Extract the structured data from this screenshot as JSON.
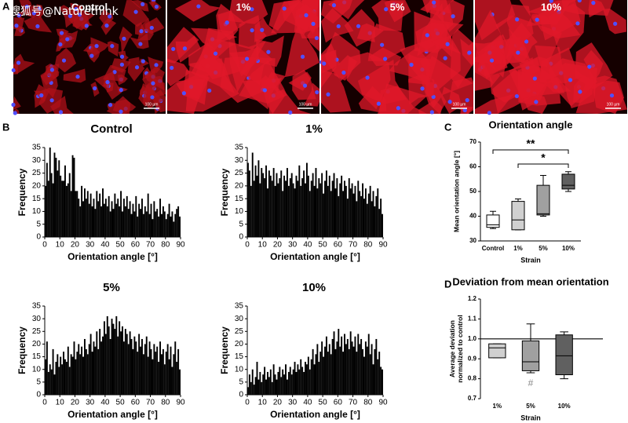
{
  "watermark": "搜狐号@Naturethink",
  "panel_labels": [
    "A",
    "B",
    "C",
    "D"
  ],
  "micrographs": {
    "titles": [
      "Control",
      "1%",
      "5%",
      "10%"
    ],
    "scale_bar": "100 µm"
  },
  "chart_data": [
    {
      "type": "histogram",
      "title": "Control",
      "x_label": "Orientation angle [°]",
      "y_label": "Frequency",
      "color": "#000000",
      "bins": [
        0,
        1,
        2,
        3,
        4,
        5,
        6,
        7,
        8,
        9,
        10,
        11,
        12,
        13,
        14,
        15,
        16,
        17,
        18,
        19,
        20,
        21,
        22,
        23,
        24,
        25,
        26,
        27,
        28,
        29,
        30,
        31,
        32,
        33,
        34,
        35,
        36,
        37,
        38,
        39,
        40,
        41,
        42,
        43,
        44,
        45,
        46,
        47,
        48,
        49,
        50,
        51,
        52,
        53,
        54,
        55,
        56,
        57,
        58,
        59,
        60,
        61,
        62,
        63,
        64,
        65,
        66,
        67,
        68,
        69,
        70,
        71,
        72,
        73,
        74,
        75,
        76,
        77,
        78,
        79,
        80,
        81,
        82,
        83,
        84,
        85,
        86,
        87,
        88,
        89,
        90
      ],
      "values": [
        20,
        29,
        22,
        35,
        25,
        21,
        33,
        31,
        26,
        30,
        24,
        22,
        22,
        28,
        20,
        21,
        25,
        18,
        32,
        31,
        18,
        18,
        15,
        12,
        20,
        14,
        19,
        15,
        18,
        13,
        17,
        12,
        15,
        11,
        18,
        14,
        17,
        12,
        19,
        13,
        15,
        12,
        16,
        10,
        14,
        11,
        17,
        13,
        15,
        12,
        18,
        10,
        15,
        12,
        16,
        11,
        14,
        9,
        13,
        10,
        16,
        8,
        13,
        11,
        15,
        9,
        12,
        10,
        17,
        9,
        13,
        7,
        14,
        10,
        11,
        8,
        15,
        9,
        12,
        10,
        7,
        9,
        13,
        8,
        10,
        6,
        9,
        11,
        12,
        8
      ],
      "xlim": [
        0,
        90
      ],
      "xticks": [
        0,
        10,
        20,
        30,
        40,
        50,
        60,
        70,
        80,
        90
      ],
      "ylim": [
        0,
        35
      ],
      "yticks": [
        0,
        5,
        10,
        15,
        20,
        25,
        30,
        35
      ]
    },
    {
      "type": "histogram",
      "title": "1%",
      "x_label": "Orientation angle [°]",
      "y_label": "Frequency",
      "color": "#000000",
      "bins": [
        0,
        1,
        2,
        3,
        4,
        5,
        6,
        7,
        8,
        9,
        10,
        11,
        12,
        13,
        14,
        15,
        16,
        17,
        18,
        19,
        20,
        21,
        22,
        23,
        24,
        25,
        26,
        27,
        28,
        29,
        30,
        31,
        32,
        33,
        34,
        35,
        36,
        37,
        38,
        39,
        40,
        41,
        42,
        43,
        44,
        45,
        46,
        47,
        48,
        49,
        50,
        51,
        52,
        53,
        54,
        55,
        56,
        57,
        58,
        59,
        60,
        61,
        62,
        63,
        64,
        65,
        66,
        67,
        68,
        69,
        70,
        71,
        72,
        73,
        74,
        75,
        76,
        77,
        78,
        79,
        80,
        81,
        82,
        83,
        84,
        85,
        86,
        87,
        88,
        89,
        90
      ],
      "values": [
        29,
        26,
        20,
        33,
        22,
        28,
        24,
        30,
        21,
        27,
        25,
        23,
        28,
        19,
        26,
        24,
        22,
        27,
        20,
        25,
        21,
        23,
        26,
        18,
        24,
        22,
        27,
        20,
        23,
        25,
        21,
        19,
        24,
        22,
        28,
        20,
        23,
        26,
        21,
        29,
        24,
        18,
        22,
        25,
        20,
        27,
        19,
        23,
        21,
        25,
        17,
        22,
        26,
        20,
        24,
        18,
        22,
        25,
        19,
        23,
        16,
        21,
        24,
        18,
        22,
        20,
        15,
        23,
        19,
        21,
        17,
        20,
        14,
        22,
        18,
        16,
        21,
        15,
        19,
        13,
        17,
        20,
        14,
        18,
        12,
        16,
        19,
        11,
        15,
        9
      ],
      "xlim": [
        0,
        90
      ],
      "xticks": [
        0,
        10,
        20,
        30,
        40,
        50,
        60,
        70,
        80,
        90
      ],
      "ylim": [
        0,
        35
      ],
      "yticks": [
        0,
        5,
        10,
        15,
        20,
        25,
        30,
        35
      ]
    },
    {
      "type": "histogram",
      "title": "5%",
      "x_label": "Orientation angle [°]",
      "y_label": "Frequency",
      "color": "#000000",
      "bins": [
        0,
        1,
        2,
        3,
        4,
        5,
        6,
        7,
        8,
        9,
        10,
        11,
        12,
        13,
        14,
        15,
        16,
        17,
        18,
        19,
        20,
        21,
        22,
        23,
        24,
        25,
        26,
        27,
        28,
        29,
        30,
        31,
        32,
        33,
        34,
        35,
        36,
        37,
        38,
        39,
        40,
        41,
        42,
        43,
        44,
        45,
        46,
        47,
        48,
        49,
        50,
        51,
        52,
        53,
        54,
        55,
        56,
        57,
        58,
        59,
        60,
        61,
        62,
        63,
        64,
        65,
        66,
        67,
        68,
        69,
        70,
        71,
        72,
        73,
        74,
        75,
        76,
        77,
        78,
        79,
        80,
        81,
        82,
        83,
        84,
        85,
        86,
        87,
        88,
        89,
        90
      ],
      "values": [
        14,
        21,
        9,
        12,
        10,
        18,
        8,
        13,
        16,
        11,
        15,
        12,
        17,
        14,
        13,
        19,
        11,
        16,
        15,
        21,
        14,
        17,
        20,
        16,
        19,
        15,
        22,
        18,
        16,
        20,
        24,
        17,
        21,
        19,
        25,
        18,
        26,
        21,
        23,
        29,
        24,
        31,
        27,
        22,
        30,
        28,
        26,
        31,
        23,
        29,
        25,
        27,
        21,
        26,
        24,
        20,
        25,
        22,
        18,
        23,
        21,
        17,
        24,
        19,
        22,
        16,
        20,
        23,
        15,
        21,
        18,
        14,
        20,
        17,
        19,
        13,
        21,
        16,
        18,
        12,
        17,
        20,
        14,
        19,
        11,
        16,
        21,
        13,
        18,
        10
      ],
      "xlim": [
        0,
        90
      ],
      "xticks": [
        0,
        10,
        20,
        30,
        40,
        50,
        60,
        70,
        80,
        90
      ],
      "ylim": [
        0,
        35
      ],
      "yticks": [
        0,
        5,
        10,
        15,
        20,
        25,
        30,
        35
      ]
    },
    {
      "type": "histogram",
      "title": "10%",
      "x_label": "Orientation angle [°]",
      "y_label": "Frequency",
      "color": "#000000",
      "bins": [
        0,
        1,
        2,
        3,
        4,
        5,
        6,
        7,
        8,
        9,
        10,
        11,
        12,
        13,
        14,
        15,
        16,
        17,
        18,
        19,
        20,
        21,
        22,
        23,
        24,
        25,
        26,
        27,
        28,
        29,
        30,
        31,
        32,
        33,
        34,
        35,
        36,
        37,
        38,
        39,
        40,
        41,
        42,
        43,
        44,
        45,
        46,
        47,
        48,
        49,
        50,
        51,
        52,
        53,
        54,
        55,
        56,
        57,
        58,
        59,
        60,
        61,
        62,
        63,
        64,
        65,
        66,
        67,
        68,
        69,
        70,
        71,
        72,
        73,
        74,
        75,
        76,
        77,
        78,
        79,
        80,
        81,
        82,
        83,
        84,
        85,
        86,
        87,
        88,
        89,
        90
      ],
      "values": [
        3,
        8,
        5,
        10,
        4,
        7,
        13,
        6,
        9,
        5,
        8,
        11,
        6,
        9,
        7,
        10,
        5,
        12,
        8,
        6,
        9,
        11,
        7,
        10,
        8,
        12,
        6,
        9,
        11,
        8,
        10,
        13,
        9,
        12,
        10,
        14,
        11,
        9,
        13,
        12,
        15,
        10,
        14,
        18,
        12,
        16,
        20,
        13,
        17,
        21,
        15,
        19,
        23,
        17,
        20,
        16,
        22,
        25,
        18,
        21,
        26,
        19,
        23,
        17,
        24,
        20,
        22,
        18,
        25,
        21,
        19,
        23,
        17,
        24,
        20,
        22,
        18,
        15,
        21,
        19,
        24,
        16,
        20,
        12,
        18,
        22,
        14,
        17,
        11,
        10
      ],
      "xlim": [
        0,
        90
      ],
      "xticks": [
        0,
        10,
        20,
        30,
        40,
        50,
        60,
        70,
        80,
        90
      ],
      "ylim": [
        0,
        35
      ],
      "yticks": [
        0,
        5,
        10,
        15,
        20,
        25,
        30,
        35
      ]
    },
    {
      "type": "box",
      "title": "Orientation angle",
      "x_label": "Strain",
      "y_label": "Mean orientation angle [°]",
      "categories": [
        "Control",
        "1%",
        "5%",
        "10%"
      ],
      "colors": [
        "#ffffff",
        "#d0d0d0",
        "#a0a0a0",
        "#606060"
      ],
      "min": [
        35,
        34.5,
        40,
        50
      ],
      "q1": [
        35.5,
        34.5,
        40.5,
        51
      ],
      "median": [
        36.5,
        38.5,
        41,
        52.5
      ],
      "q3": [
        40.5,
        46,
        52.5,
        57
      ],
      "max": [
        42,
        47,
        56.5,
        58
      ],
      "ylim": [
        30,
        70
      ],
      "yticks": [
        30,
        40,
        50,
        60,
        70
      ],
      "annotations": [
        "**",
        "*"
      ]
    },
    {
      "type": "box",
      "title": "Deviation from mean orientation",
      "x_label": "Strain",
      "y_label": "Average deviation normalized to control",
      "categories": [
        "1%",
        "5%",
        "10%"
      ],
      "colors": [
        "#d0d0d0",
        "#a0a0a0",
        "#606060"
      ],
      "min": [
        0.905,
        0.83,
        0.8
      ],
      "q1": [
        0.905,
        0.84,
        0.82
      ],
      "median": [
        0.955,
        0.885,
        0.915
      ],
      "q3": [
        0.975,
        0.99,
        1.02
      ],
      "max": [
        0.975,
        1.075,
        1.035
      ],
      "ylim": [
        0.7,
        1.2
      ],
      "yticks": [
        0.7,
        0.8,
        0.9,
        {
          "value": 1,
          "label": "1.0"
        },
        1.1,
        1.2
      ],
      "reference_line": 1,
      "annotations": [
        "#"
      ]
    }
  ]
}
